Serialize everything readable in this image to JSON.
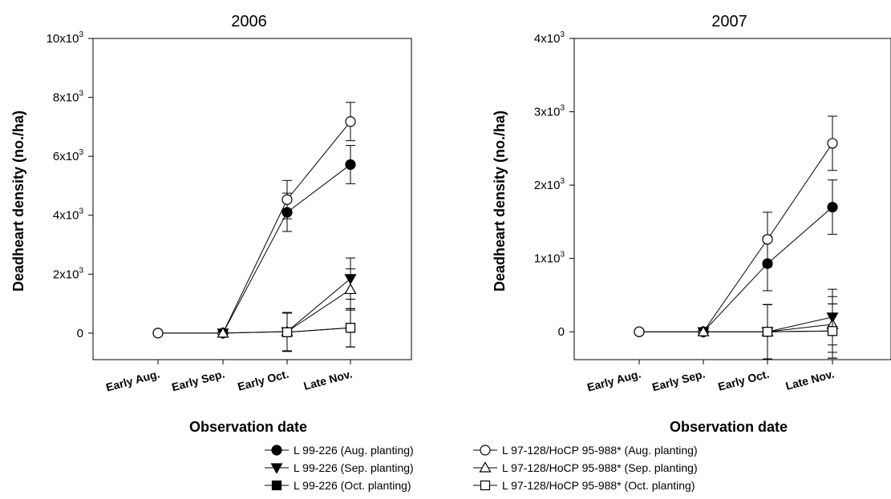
{
  "chart_data": [
    {
      "type": "line",
      "title": "2006",
      "xlabel": "Observation date",
      "ylabel": "Deadheart density (no./ha)",
      "categories": [
        "Early Aug.",
        "Early Sep.",
        "Early Oct.",
        "Late Nov."
      ],
      "ylim": [
        -900,
        10000
      ],
      "yticks": [
        0,
        2000,
        4000,
        6000,
        8000,
        10000
      ],
      "ytick_labels": [
        {
          "base": "0",
          "exp": ""
        },
        {
          "base": "2x10",
          "exp": "3"
        },
        {
          "base": "4x10",
          "exp": "3"
        },
        {
          "base": "6x10",
          "exp": "3"
        },
        {
          "base": "8x10",
          "exp": "3"
        },
        {
          "base": "10x10",
          "exp": "3"
        }
      ],
      "series": [
        {
          "name": "L 99-226 (Aug. planting)",
          "marker": "circle-filled",
          "values": [
            0,
            0,
            4100,
            5720
          ],
          "errors": [
            0,
            0,
            650,
            650
          ]
        },
        {
          "name": "L 97-128/HoCP 95-988* (Aug. planting)",
          "marker": "circle-open",
          "values": [
            0,
            0,
            4530,
            7180
          ],
          "errors": [
            0,
            0,
            650,
            650
          ]
        },
        {
          "name": "L 99-226 (Sep. planting)",
          "marker": "triangle-down-filled",
          "values": [
            null,
            0,
            50,
            1850
          ],
          "errors": [
            null,
            0,
            650,
            700
          ]
        },
        {
          "name": "L 97-128/HoCP 95-988* (Sep. planting)",
          "marker": "triangle-up-open",
          "values": [
            null,
            0,
            50,
            1480
          ],
          "errors": [
            null,
            0,
            650,
            700
          ]
        },
        {
          "name": "L 99-226 (Oct. planting)",
          "marker": "square-filled",
          "values": [
            null,
            null,
            30,
            180
          ],
          "errors": [
            null,
            null,
            650,
            650
          ]
        },
        {
          "name": "L 97-128/HoCP 95-988* (Oct. planting)",
          "marker": "square-open",
          "values": [
            null,
            null,
            30,
            180
          ],
          "errors": [
            null,
            null,
            650,
            650
          ]
        }
      ]
    },
    {
      "type": "line",
      "title": "2007",
      "xlabel": "Observation date",
      "ylabel": "Deadheart density (no./ha)",
      "categories": [
        "Early Aug.",
        "Early Sep.",
        "Early Oct.",
        "Late Nov."
      ],
      "ylim": [
        -380,
        4000
      ],
      "yticks": [
        0,
        1000,
        2000,
        3000,
        4000
      ],
      "ytick_labels": [
        {
          "base": "0",
          "exp": ""
        },
        {
          "base": "1x10",
          "exp": "3"
        },
        {
          "base": "2x10",
          "exp": "3"
        },
        {
          "base": "3x10",
          "exp": "3"
        },
        {
          "base": "4x10",
          "exp": "3"
        }
      ],
      "series": [
        {
          "name": "L 99-226 (Aug. planting)",
          "marker": "circle-filled",
          "values": [
            0,
            0,
            930,
            1700
          ],
          "errors": [
            0,
            0,
            370,
            370
          ]
        },
        {
          "name": "L 97-128/HoCP 95-988* (Aug. planting)",
          "marker": "circle-open",
          "values": [
            0,
            0,
            1260,
            2570
          ],
          "errors": [
            0,
            0,
            370,
            370
          ]
        },
        {
          "name": "L 99-226 (Sep. planting)",
          "marker": "triangle-down-filled",
          "values": [
            null,
            0,
            0,
            200
          ],
          "errors": [
            null,
            0,
            370,
            380
          ]
        },
        {
          "name": "L 97-128/HoCP 95-988* (Sep. planting)",
          "marker": "triangle-up-open",
          "values": [
            null,
            0,
            0,
            100
          ],
          "errors": [
            null,
            0,
            370,
            380
          ]
        },
        {
          "name": "L 99-226 (Oct. planting)",
          "marker": "square-filled",
          "values": [
            null,
            null,
            0,
            10
          ],
          "errors": [
            null,
            null,
            370,
            370
          ]
        },
        {
          "name": "L 97-128/HoCP 95-988* (Oct. planting)",
          "marker": "square-open",
          "values": [
            null,
            null,
            0,
            10
          ],
          "errors": [
            null,
            null,
            370,
            370
          ]
        }
      ]
    }
  ],
  "legend": {
    "placement": "bottom-center",
    "rows": [
      [
        "L 99-226 (Aug. planting)",
        "L 97-128/HoCP 95-988* (Aug. planting)"
      ],
      [
        "L 99-226 (Sep. planting)",
        "L 97-128/HoCP 95-988* (Sep. planting)"
      ],
      [
        "L 99-226 (Oct. planting)",
        "L 97-128/HoCP 95-988* (Oct. planting)"
      ]
    ]
  }
}
